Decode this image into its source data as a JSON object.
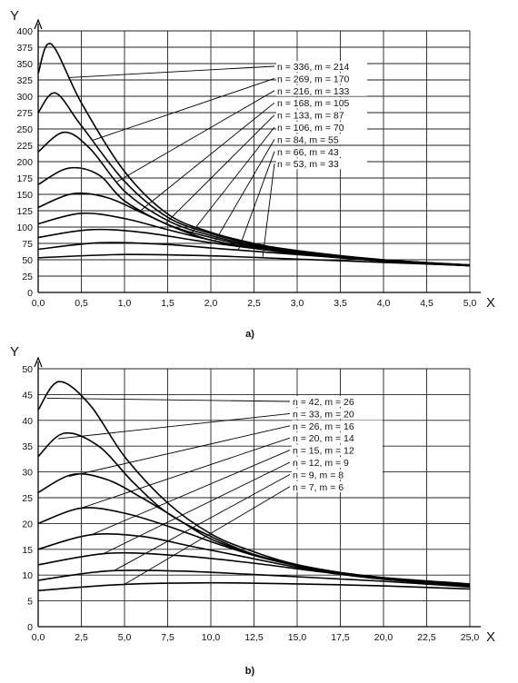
{
  "chart_data": [
    {
      "id": "a",
      "type": "line",
      "panel_label": "a)",
      "xlabel": "X",
      "ylabel": "Y",
      "xlim": [
        0,
        5
      ],
      "ylim": [
        0,
        400
      ],
      "grid": true,
      "x_ticks": [
        "0,0",
        "0,5",
        "1,0",
        "1,5",
        "2,0",
        "2,5",
        "3,0",
        "3,5",
        "4,0",
        "4,5",
        "5,0"
      ],
      "y_ticks": [
        "0",
        "25",
        "50",
        "75",
        "100",
        "125",
        "150",
        "175",
        "200",
        "225",
        "250",
        "275",
        "300",
        "325",
        "350",
        "375",
        "400"
      ],
      "legend": [
        "n = 336, m = 214",
        "n = 269, m = 170",
        "n = 216, m = 133",
        "n = 168, m = 105",
        "n = 133, m = 87",
        "n = 106, m = 70",
        "n = 84, m = 55",
        "n = 66, m = 43",
        "n = 53, m = 33"
      ],
      "series": [
        {
          "name": "n = 336, m = 214",
          "x": [
            0,
            0.15,
            0.5,
            1.0,
            1.5,
            2.0,
            2.5,
            3.0,
            4.0,
            5.0
          ],
          "y": [
            335,
            380,
            290,
            185,
            120,
            92,
            75,
            64,
            50,
            42
          ]
        },
        {
          "name": "n = 269, m = 170",
          "x": [
            0,
            0.2,
            0.5,
            1.0,
            1.5,
            2.0,
            2.5,
            3.0,
            4.0,
            5.0
          ],
          "y": [
            275,
            305,
            255,
            170,
            115,
            90,
            74,
            63,
            50,
            42
          ]
        },
        {
          "name": "n = 216, m = 133",
          "x": [
            0,
            0.3,
            0.6,
            1.0,
            1.5,
            2.0,
            2.5,
            3.0,
            4.0,
            5.0
          ],
          "y": [
            215,
            245,
            220,
            155,
            110,
            87,
            72,
            62,
            49,
            42
          ]
        },
        {
          "name": "n = 168, m = 105",
          "x": [
            0,
            0.35,
            0.7,
            1.0,
            1.5,
            2.0,
            2.5,
            3.0,
            4.0,
            5.0
          ],
          "y": [
            165,
            190,
            180,
            140,
            104,
            84,
            70,
            61,
            49,
            41
          ]
        },
        {
          "name": "n = 133, m = 87",
          "x": [
            0,
            0.4,
            0.8,
            1.2,
            1.6,
            2.0,
            2.5,
            3.0,
            4.0,
            5.0
          ],
          "y": [
            130,
            151,
            145,
            122,
            98,
            80,
            68,
            60,
            48,
            41
          ]
        },
        {
          "name": "n = 106, m = 70",
          "x": [
            0,
            0.5,
            1.0,
            1.5,
            2.0,
            2.5,
            3.0,
            4.0,
            5.0
          ],
          "y": [
            105,
            121,
            113,
            96,
            80,
            68,
            59,
            48,
            41
          ]
        },
        {
          "name": "n = 84, m = 55",
          "x": [
            0,
            0.6,
            1.2,
            1.8,
            2.4,
            3.0,
            4.0,
            5.0
          ],
          "y": [
            84,
            96,
            92,
            80,
            69,
            60,
            48,
            41
          ]
        },
        {
          "name": "n = 66, m = 43",
          "x": [
            0,
            0.7,
            1.4,
            2.1,
            2.8,
            3.5,
            4.2,
            5.0
          ],
          "y": [
            66,
            76,
            74,
            67,
            60,
            53,
            47,
            41
          ]
        },
        {
          "name": "n = 53, m = 33",
          "x": [
            0,
            1.0,
            2.0,
            3.0,
            4.0,
            5.0
          ],
          "y": [
            53,
            58,
            56,
            51,
            46,
            41
          ]
        }
      ]
    },
    {
      "id": "b",
      "type": "line",
      "panel_label": "b)",
      "xlabel": "X",
      "ylabel": "Y",
      "xlim": [
        0,
        25
      ],
      "ylim": [
        0,
        50
      ],
      "grid": true,
      "x_ticks": [
        "0,0",
        "2,5",
        "5,0",
        "7,5",
        "10,0",
        "12,5",
        "15,0",
        "17,5",
        "20,0",
        "22,5",
        "25,0"
      ],
      "y_ticks": [
        "0",
        "5",
        "10",
        "15",
        "20",
        "25",
        "30",
        "35",
        "40",
        "45",
        "50"
      ],
      "legend": [
        "n = 42, m = 26",
        "n = 33, m = 20",
        "n = 26, m = 16",
        "n = 20, m = 14",
        "n = 15, m = 12",
        "n = 12, m = 9",
        "n = 9, m = 8",
        "n = 7, m = 6"
      ],
      "series": [
        {
          "name": "n = 42, m = 26",
          "x": [
            0,
            1.2,
            3,
            5,
            7.5,
            10,
            12.5,
            15,
            17.5,
            20,
            25
          ],
          "y": [
            42,
            47.5,
            43,
            33,
            24,
            18,
            14.5,
            12,
            10.5,
            9.5,
            8.3
          ]
        },
        {
          "name": "n = 33, m = 20",
          "x": [
            0,
            1.5,
            3.5,
            5.5,
            7.5,
            10,
            12.5,
            15,
            17.5,
            20,
            25
          ],
          "y": [
            33,
            37.5,
            35,
            28,
            22,
            17.5,
            14,
            12,
            10.5,
            9.5,
            8.2
          ]
        },
        {
          "name": "n = 26, m = 16",
          "x": [
            0,
            2,
            4,
            6,
            8,
            10,
            12.5,
            15,
            17.5,
            20,
            25
          ],
          "y": [
            26,
            29.5,
            28.5,
            25,
            21,
            17,
            14,
            11.8,
            10.3,
            9.4,
            8.1
          ]
        },
        {
          "name": "n = 20, m = 14",
          "x": [
            0,
            2.5,
            5,
            7.5,
            10,
            12.5,
            15,
            17.5,
            20,
            25
          ],
          "y": [
            20,
            23,
            22,
            19.5,
            16.5,
            13.8,
            11.8,
            10.3,
            9.3,
            8
          ]
        },
        {
          "name": "n = 15, m = 12",
          "x": [
            0,
            3,
            6,
            9,
            12,
            15,
            17.5,
            20,
            25
          ],
          "y": [
            15,
            17.8,
            17.5,
            15.5,
            13.5,
            11.5,
            10.2,
            9.2,
            7.9
          ]
        },
        {
          "name": "n = 12, m = 9",
          "x": [
            0,
            4,
            8,
            12,
            16,
            20,
            25
          ],
          "y": [
            12,
            14.2,
            13.8,
            12.5,
            10.8,
            9.2,
            7.8
          ]
        },
        {
          "name": "n = 9, m = 8",
          "x": [
            0,
            4,
            8,
            12,
            16,
            20,
            25
          ],
          "y": [
            9,
            10.8,
            10.8,
            10.2,
            9.5,
            8.8,
            7.7
          ]
        },
        {
          "name": "n = 7, m = 6",
          "x": [
            0,
            5,
            10,
            15,
            20,
            25
          ],
          "y": [
            7,
            8.2,
            8.5,
            8.3,
            7.9,
            7.3
          ]
        }
      ]
    }
  ]
}
